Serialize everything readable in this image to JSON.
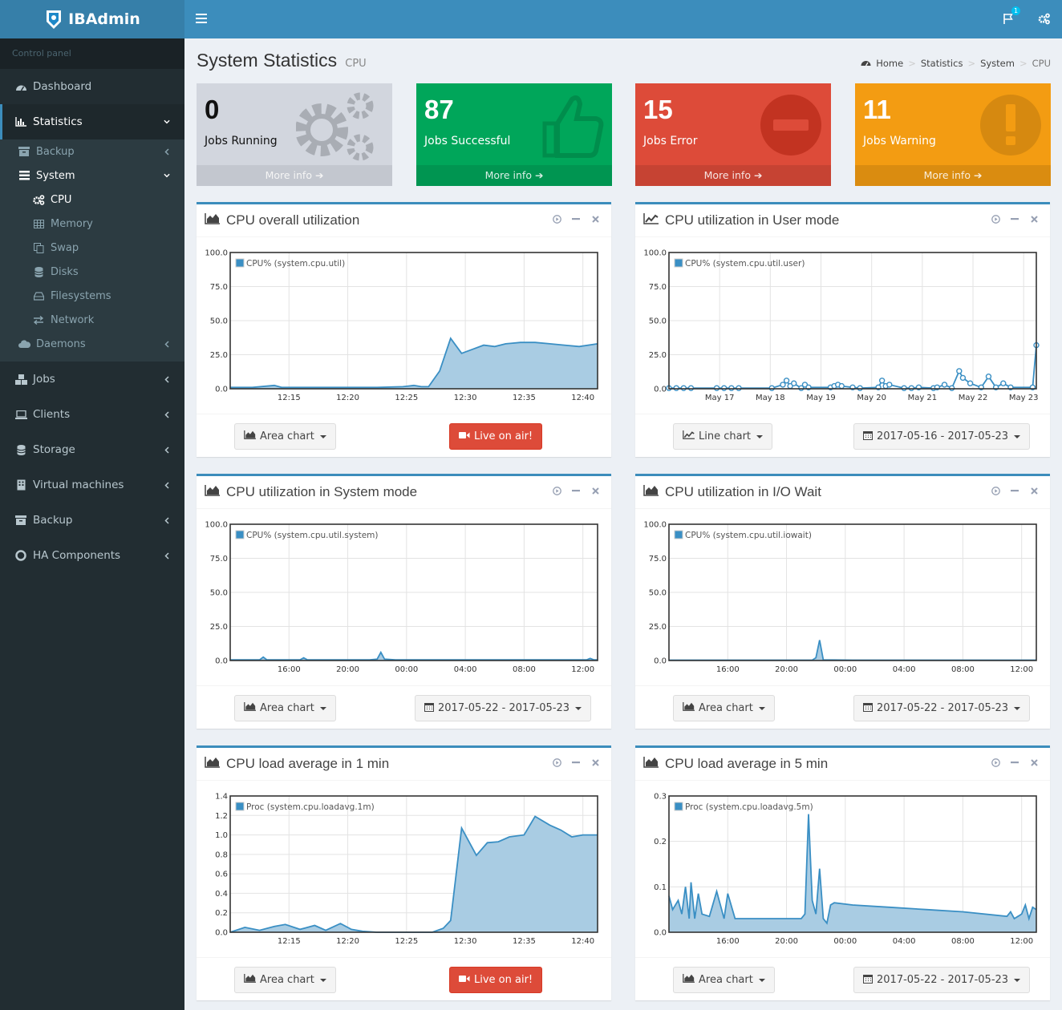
{
  "app": {
    "name": "IBAdmin"
  },
  "sidebar": {
    "header": "Control panel",
    "items": [
      {
        "label": "Dashboard",
        "icon": "dashboard-icon"
      },
      {
        "label": "Statistics",
        "icon": "bar-chart-icon",
        "active": true
      },
      {
        "label": "Jobs",
        "icon": "cubes-icon"
      },
      {
        "label": "Clients",
        "icon": "laptop-icon"
      },
      {
        "label": "Storage",
        "icon": "database-icon"
      },
      {
        "label": "Virtual machines",
        "icon": "server-icon"
      },
      {
        "label": "Backup",
        "icon": "archive-icon"
      },
      {
        "label": "HA Components",
        "icon": "life-ring-icon"
      }
    ],
    "statistics_sub": [
      {
        "label": "Backup"
      },
      {
        "label": "System"
      },
      {
        "label": "Daemons"
      }
    ],
    "system_sub": [
      {
        "label": "CPU",
        "active": true
      },
      {
        "label": "Memory"
      },
      {
        "label": "Swap"
      },
      {
        "label": "Disks"
      },
      {
        "label": "Filesystems"
      },
      {
        "label": "Network"
      }
    ]
  },
  "topbar": {
    "notification_count": "1"
  },
  "page": {
    "title": "System Statistics",
    "subtitle": "CPU"
  },
  "breadcrumb": [
    "Home",
    "Statistics",
    "System",
    "CPU"
  ],
  "stat_boxes": [
    {
      "number": "0",
      "label": "Jobs Running",
      "more": "More info",
      "color": "#d2d6de"
    },
    {
      "number": "87",
      "label": "Jobs Successful",
      "more": "More info",
      "color": "#00a65a"
    },
    {
      "number": "15",
      "label": "Jobs Error",
      "more": "More info",
      "color": "#dd4b39"
    },
    {
      "number": "11",
      "label": "Jobs Warning",
      "more": "More info",
      "color": "#f39c12"
    }
  ],
  "panels": [
    {
      "title": "CPU overall utilization",
      "btn1": "Area chart",
      "btn2": "Live on air!"
    },
    {
      "title": "CPU utilization in User mode",
      "btn1": "Line chart",
      "btn2": "2017-05-16 - 2017-05-23"
    },
    {
      "title": "CPU utilization in System mode",
      "btn1": "Area chart",
      "btn2": "2017-05-22 - 2017-05-23"
    },
    {
      "title": "CPU utilization in I/O Wait",
      "btn1": "Area chart",
      "btn2": "2017-05-22 - 2017-05-23"
    },
    {
      "title": "CPU load average in 1 min",
      "btn1": "Area chart",
      "btn2": "Live on air!"
    },
    {
      "title": "CPU load average in 5 min",
      "btn1": "Area chart",
      "btn2": "2017-05-22 - 2017-05-23"
    }
  ],
  "chart_data": [
    {
      "type": "area",
      "legend": "CPU% (system.cpu.util)",
      "yticks": [
        "100.0",
        "75.0",
        "50.0",
        "25.0",
        "0.0"
      ],
      "ylim": [
        0,
        100
      ],
      "xticks": [
        "12:15",
        "12:20",
        "12:25",
        "12:30",
        "12:35",
        "12:40"
      ],
      "xlim": [
        0,
        1
      ],
      "x": [
        0,
        0.06,
        0.12,
        0.14,
        0.2,
        0.3,
        0.4,
        0.47,
        0.5,
        0.52,
        0.54,
        0.57,
        0.6,
        0.63,
        0.66,
        0.69,
        0.72,
        0.75,
        0.79,
        0.83,
        0.87,
        0.91,
        0.95,
        1
      ],
      "y": [
        1,
        1,
        2.5,
        1,
        1,
        1,
        1,
        1.5,
        2.5,
        1.5,
        1.5,
        13,
        37,
        26,
        29,
        32,
        31,
        33,
        34,
        34,
        33,
        32,
        31,
        33
      ]
    },
    {
      "type": "line",
      "markers": true,
      "legend": "CPU% (system.cpu.util.user)",
      "yticks": [
        "100.0",
        "75.0",
        "50.0",
        "25.0",
        "0.0"
      ],
      "ylim": [
        0,
        100
      ],
      "xticks": [
        "May 17",
        "May 18",
        "May 19",
        "May 20",
        "May 21",
        "May 22",
        "May 23"
      ],
      "xlim": [
        0,
        1
      ],
      "x": [
        0,
        0.02,
        0.04,
        0.06,
        0.13,
        0.15,
        0.17,
        0.19,
        0.28,
        0.31,
        0.32,
        0.33,
        0.34,
        0.36,
        0.37,
        0.38,
        0.44,
        0.45,
        0.46,
        0.47,
        0.5,
        0.52,
        0.57,
        0.58,
        0.59,
        0.6,
        0.64,
        0.66,
        0.68,
        0.72,
        0.73,
        0.75,
        0.77,
        0.79,
        0.8,
        0.82,
        0.85,
        0.87,
        0.89,
        0.91,
        0.93,
        0.99,
        1
      ],
      "y": [
        0.5,
        0.5,
        0.5,
        0.5,
        0.5,
        0.5,
        0.5,
        0.5,
        0.5,
        3,
        6,
        2,
        4,
        0.5,
        3,
        1,
        1,
        2,
        3,
        2,
        1,
        0.5,
        1,
        6,
        2,
        3,
        0.5,
        0.5,
        1,
        0.5,
        1,
        3,
        0.5,
        13,
        8,
        4,
        1,
        9,
        1,
        4,
        1,
        1,
        32
      ]
    },
    {
      "type": "area",
      "legend": "CPU% (system.cpu.util.system)",
      "yticks": [
        "100.0",
        "75.0",
        "50.0",
        "25.0",
        "0.0"
      ],
      "ylim": [
        0,
        100
      ],
      "xticks": [
        "16:00",
        "20:00",
        "00:00",
        "04:00",
        "08:00",
        "12:00"
      ],
      "xlim": [
        0,
        1
      ],
      "x": [
        0,
        0.05,
        0.08,
        0.09,
        0.1,
        0.15,
        0.19,
        0.2,
        0.21,
        0.3,
        0.38,
        0.4,
        0.41,
        0.42,
        0.45,
        0.5,
        0.6,
        0.7,
        0.8,
        0.9,
        0.97,
        0.98,
        0.99,
        1
      ],
      "y": [
        0.5,
        0.5,
        0.5,
        2.5,
        0.5,
        0.5,
        0.5,
        2,
        0.5,
        0.5,
        0.5,
        1,
        6,
        1,
        0.5,
        0.5,
        0.5,
        0.5,
        0.5,
        0.5,
        0.5,
        1.5,
        0.5,
        0.5
      ]
    },
    {
      "type": "area",
      "legend": "CPU% (system.cpu.util.iowait)",
      "yticks": [
        "100.0",
        "75.0",
        "50.0",
        "25.0",
        "0.0"
      ],
      "ylim": [
        0,
        100
      ],
      "xticks": [
        "16:00",
        "20:00",
        "00:00",
        "04:00",
        "08:00",
        "12:00"
      ],
      "xlim": [
        0,
        1
      ],
      "x": [
        0,
        0.3,
        0.39,
        0.4,
        0.41,
        0.42,
        0.5,
        1
      ],
      "y": [
        0.3,
        0.3,
        0.3,
        2,
        15,
        0.5,
        0.3,
        0.3
      ]
    },
    {
      "type": "area",
      "legend": "Proc (system.cpu.loadavg.1m)",
      "yticks": [
        "1.4",
        "1.2",
        "1.0",
        "0.8",
        "0.6",
        "0.4",
        "0.2",
        "0.0"
      ],
      "ylim": [
        0,
        1.4
      ],
      "xticks": [
        "12:15",
        "12:20",
        "12:25",
        "12:30",
        "12:35",
        "12:40"
      ],
      "xlim": [
        0,
        1
      ],
      "x": [
        0,
        0.04,
        0.08,
        0.12,
        0.15,
        0.19,
        0.23,
        0.26,
        0.3,
        0.33,
        0.36,
        0.4,
        0.45,
        0.5,
        0.55,
        0.58,
        0.6,
        0.63,
        0.67,
        0.7,
        0.73,
        0.76,
        0.8,
        0.83,
        0.87,
        0.9,
        0.93,
        0.96,
        1
      ],
      "y": [
        0,
        0.05,
        0.02,
        0.06,
        0.08,
        0.03,
        0.07,
        0.02,
        0.09,
        0.03,
        0.01,
        0,
        0,
        0,
        0,
        0.04,
        0.12,
        1.07,
        0.79,
        0.92,
        0.93,
        0.98,
        1.0,
        1.19,
        1.1,
        1.05,
        0.98,
        1.0,
        1.0
      ]
    },
    {
      "type": "area",
      "legend": "Proc (system.cpu.loadavg.5m)",
      "yticks": [
        "0.3",
        "0.2",
        "0.1",
        "0.0"
      ],
      "ylim": [
        0,
        0.3
      ],
      "xticks": [
        "16:00",
        "20:00",
        "00:00",
        "04:00",
        "08:00",
        "12:00"
      ],
      "xlim": [
        0,
        1
      ],
      "x": [
        0,
        0.01,
        0.025,
        0.035,
        0.045,
        0.055,
        0.06,
        0.07,
        0.08,
        0.09,
        0.11,
        0.13,
        0.15,
        0.16,
        0.18,
        0.3,
        0.36,
        0.37,
        0.38,
        0.39,
        0.4,
        0.41,
        0.42,
        0.43,
        0.44,
        0.45,
        0.5,
        0.6,
        0.7,
        0.8,
        0.92,
        0.93,
        0.94,
        0.95,
        0.96,
        0.97,
        0.98,
        0.99,
        1
      ],
      "y": [
        0.08,
        0.05,
        0.07,
        0.04,
        0.1,
        0.03,
        0.11,
        0.03,
        0.085,
        0.04,
        0.035,
        0.09,
        0.03,
        0.085,
        0.03,
        0.03,
        0.03,
        0.04,
        0.26,
        0.07,
        0.04,
        0.14,
        0.03,
        0.02,
        0.06,
        0.065,
        0.06,
        0.055,
        0.05,
        0.045,
        0.035,
        0.045,
        0.03,
        0.035,
        0.04,
        0.06,
        0.03,
        0.055,
        0.05
      ]
    }
  ]
}
